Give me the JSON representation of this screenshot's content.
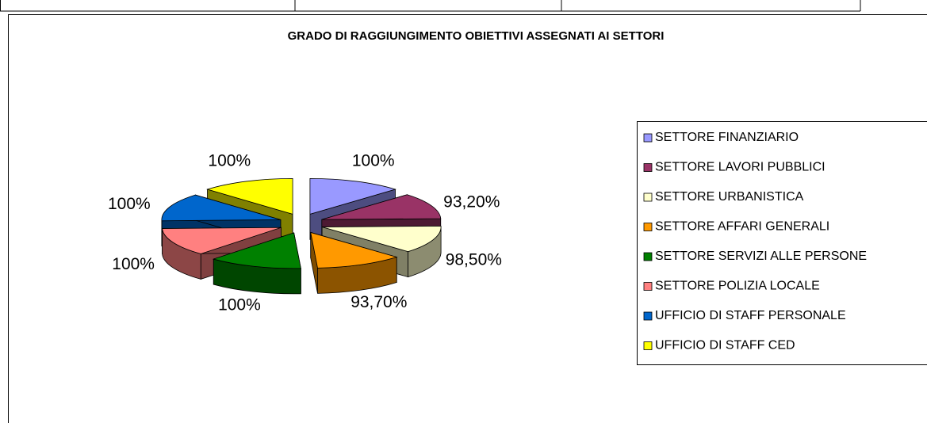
{
  "chart_data": {
    "type": "pie",
    "title": "GRADO DI RAGGIUNGIMENTO OBIETTIVI ASSEGNATI AI SETTORI",
    "categories": [
      "SETTORE FINANZIARIO",
      "SETTORE LAVORI PUBBLICI",
      "SETTORE URBANISTICA",
      "SETTORE AFFARI GENERALI",
      "SETTORE SERVIZI ALLE PERSONE",
      "SETTORE POLIZIA LOCALE",
      "UFFICIO DI STAFF PERSONALE",
      "UFFICIO DI STAFF CED"
    ],
    "values": [
      100,
      93.2,
      98.5,
      93.7,
      100,
      100,
      100,
      100
    ],
    "value_labels": [
      "100%",
      "93,20%",
      "98,50%",
      "93,70%",
      "100%",
      "100%",
      "100%",
      "100%"
    ],
    "colors": [
      "#9999FF",
      "#993366",
      "#FFFFCC",
      "#FF9900",
      "#008000",
      "#FF8080",
      "#0066CC",
      "#FFFF00"
    ],
    "legend": "right"
  }
}
